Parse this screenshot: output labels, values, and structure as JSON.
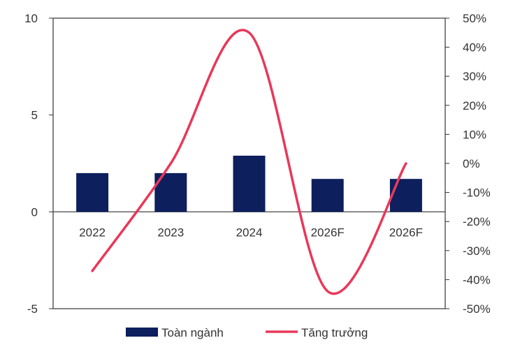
{
  "chart_data": {
    "type": "bar",
    "categories": [
      "2022",
      "2023",
      "2024",
      "2026F",
      "2026F"
    ],
    "series": [
      {
        "name": "Toàn ngành",
        "type": "bar",
        "axis": "left",
        "color": "#0d1f5c",
        "values": [
          2.0,
          2.0,
          2.9,
          1.7,
          1.7
        ]
      },
      {
        "name": "Tăng trưởng",
        "type": "line",
        "axis": "right",
        "color": "#e8385a",
        "values": [
          -37,
          0,
          45,
          -44,
          0
        ]
      }
    ],
    "ylim": [
      -5,
      10
    ],
    "y_ticks": [
      "-5",
      "0",
      "5",
      "10"
    ],
    "y2lim": [
      -50,
      50
    ],
    "y2_ticks": [
      "-50%",
      "-40%",
      "-30%",
      "-20%",
      "-10%",
      "0%",
      "10%",
      "20%",
      "30%",
      "40%",
      "50%"
    ],
    "legend": {
      "position": "bottom"
    },
    "grid": false
  }
}
